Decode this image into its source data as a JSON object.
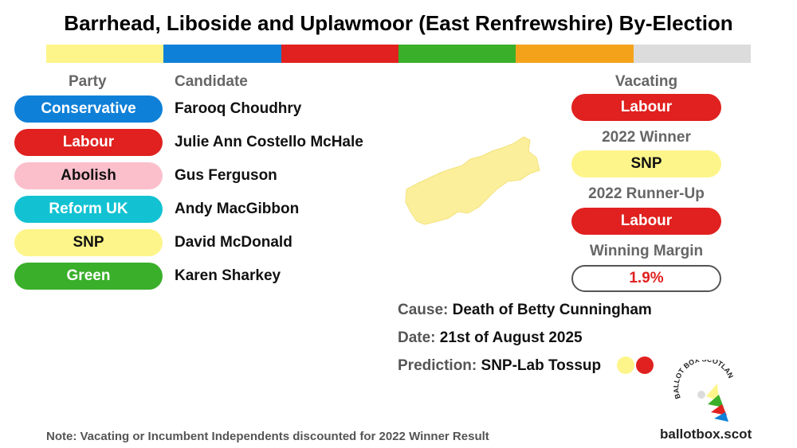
{
  "title": "Barrhead, Liboside and Uplawmoor (East Renfrewshire) By-Election",
  "colorbar": [
    "#fdf58a",
    "#0f80d8",
    "#e0211f",
    "#3aaf2a",
    "#f5a21b",
    "#dcdcdc"
  ],
  "headers": {
    "party": "Party",
    "candidate": "Candidate"
  },
  "candidates": [
    {
      "party": "Conservative",
      "name": "Farooq Choudhry",
      "bg": "#0f80d8",
      "fg": "#ffffff"
    },
    {
      "party": "Labour",
      "name": "Julie Ann Costello McHale",
      "bg": "#e0211f",
      "fg": "#ffffff"
    },
    {
      "party": "Abolish",
      "name": "Gus Ferguson",
      "bg": "#fbbfcc",
      "fg": "#111111"
    },
    {
      "party": "Reform UK",
      "name": "Andy MacGibbon",
      "bg": "#12c2d2",
      "fg": "#ffffff"
    },
    {
      "party": "SNP",
      "name": "David McDonald",
      "bg": "#fdf58a",
      "fg": "#111111"
    },
    {
      "party": "Green",
      "name": "Karen Sharkey",
      "bg": "#3aaf2a",
      "fg": "#ffffff"
    }
  ],
  "right": {
    "vacating_label": "Vacating",
    "vacating": "Labour",
    "winner_label": "2022 Winner",
    "winner": "SNP",
    "runnerup_label": "2022 Runner-Up",
    "runnerup": "Labour",
    "margin_label": "Winning Margin",
    "margin": "1.9%"
  },
  "info": {
    "cause_key": "Cause:",
    "cause": "Death of Betty Cunningham",
    "date_key": "Date:",
    "date": "21st of August 2025",
    "prediction_key": "Prediction:",
    "prediction": "SNP-Lab Tossup"
  },
  "colors": {
    "labour": "#e0211f",
    "snp": "#fdf58a",
    "margin_text": "#e0211f",
    "map_fill": "#fbef9c"
  },
  "note": "Note: Vacating  or Incumbent Independents discounted for 2022 Winner Result",
  "site": "ballotbox.scot",
  "logo_text": "BALLOT BOX SCOTLAND",
  "icons": {
    "map": "ward-map-shape",
    "logo": "ballot-box-logo"
  }
}
